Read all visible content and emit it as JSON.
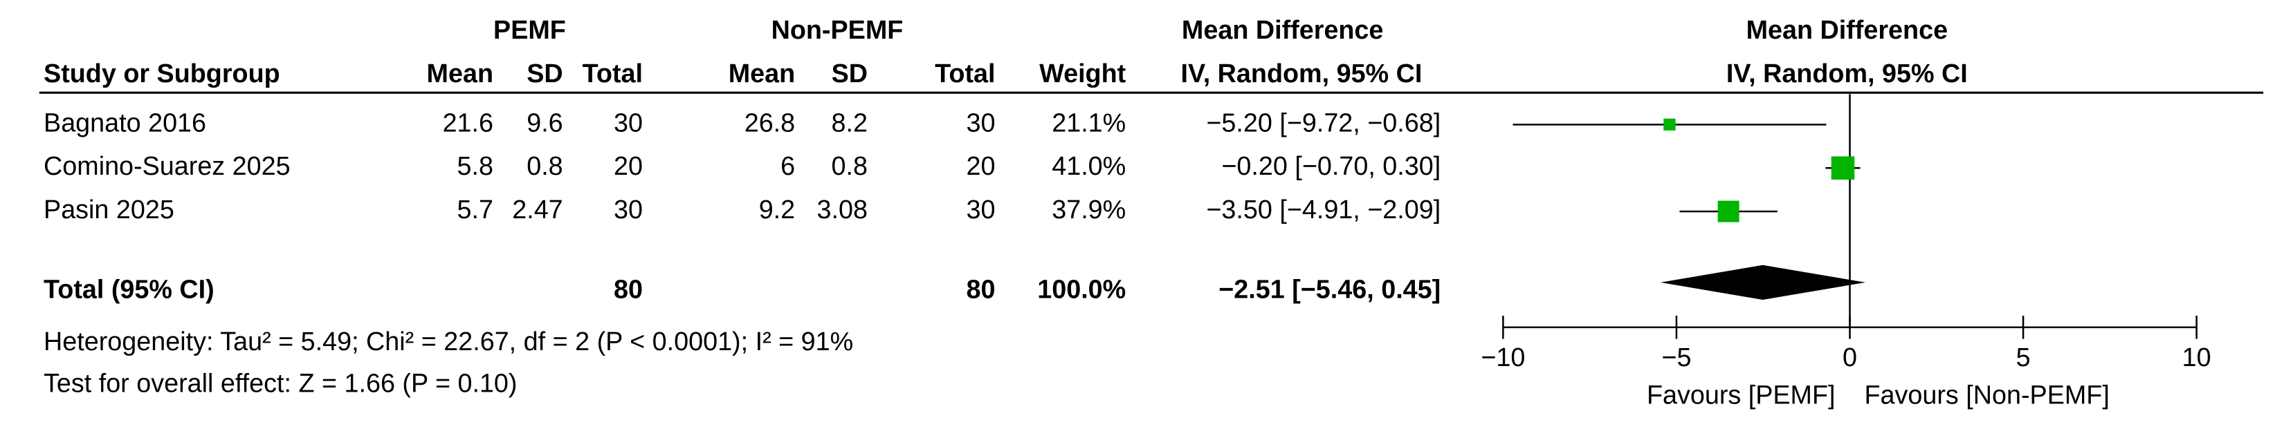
{
  "chart_data": {
    "type": "forest",
    "group_headers": [
      "PEMF",
      "Non-PEMF",
      "Mean Difference",
      "Mean Difference"
    ],
    "column_headers": [
      "Study or Subgroup",
      "Mean",
      "SD",
      "Total",
      "Mean",
      "SD",
      "Total",
      "Weight",
      "IV, Random, 95% CI",
      "IV, Random, 95% CI"
    ],
    "color": "#00b400",
    "studies": [
      {
        "name": "Bagnato 2016",
        "exp_mean": 21.6,
        "exp_sd": 9.6,
        "exp_total": 30,
        "ctl_mean": 26.8,
        "ctl_sd": 8.2,
        "ctl_total": 30,
        "weight": 21.1,
        "weight_label": "21.1%",
        "md": -5.2,
        "ci_low": -9.72,
        "ci_high": -0.68,
        "ci_label": "−5.20 [−9.72, −0.68]"
      },
      {
        "name": "Comino-Suarez 2025",
        "exp_mean": 5.8,
        "exp_sd": 0.8,
        "exp_total": 20,
        "ctl_mean": 6,
        "ctl_sd": 0.8,
        "ctl_total": 20,
        "weight": 41.0,
        "weight_label": "41.0%",
        "md": -0.2,
        "ci_low": -0.7,
        "ci_high": 0.3,
        "ci_label": "−0.20 [−0.70, 0.30]"
      },
      {
        "name": "Pasin 2025",
        "exp_mean": 5.7,
        "exp_sd": 2.47,
        "exp_total": 30,
        "ctl_mean": 9.2,
        "ctl_sd": 3.08,
        "ctl_total": 30,
        "weight": 37.9,
        "weight_label": "37.9%",
        "md": -3.5,
        "ci_low": -4.91,
        "ci_high": -2.09,
        "ci_label": "−3.50 [−4.91, −2.09]"
      }
    ],
    "total": {
      "name": "Total (95% CI)",
      "exp_total": 80,
      "ctl_total": 80,
      "weight": 100.0,
      "weight_label": "100.0%",
      "md": -2.51,
      "ci_low": -5.46,
      "ci_high": 0.45,
      "ci_label": "−2.51 [−5.46, 0.45]"
    },
    "heterogeneity": "Heterogeneity: Tau² = 5.49; Chi² = 22.67, df = 2 (P < 0.0001); I² = 91%",
    "overall_effect": "Test for overall effect: Z = 1.66 (P = 0.10)",
    "xlim": [
      -10,
      10
    ],
    "xticks": [
      {
        "value": -10,
        "label": "−10"
      },
      {
        "value": -5,
        "label": "−5"
      },
      0,
      5,
      10
    ],
    "favours_left": "Favours [PEMF]",
    "favours_right": "Favours [Non-PEMF]"
  }
}
